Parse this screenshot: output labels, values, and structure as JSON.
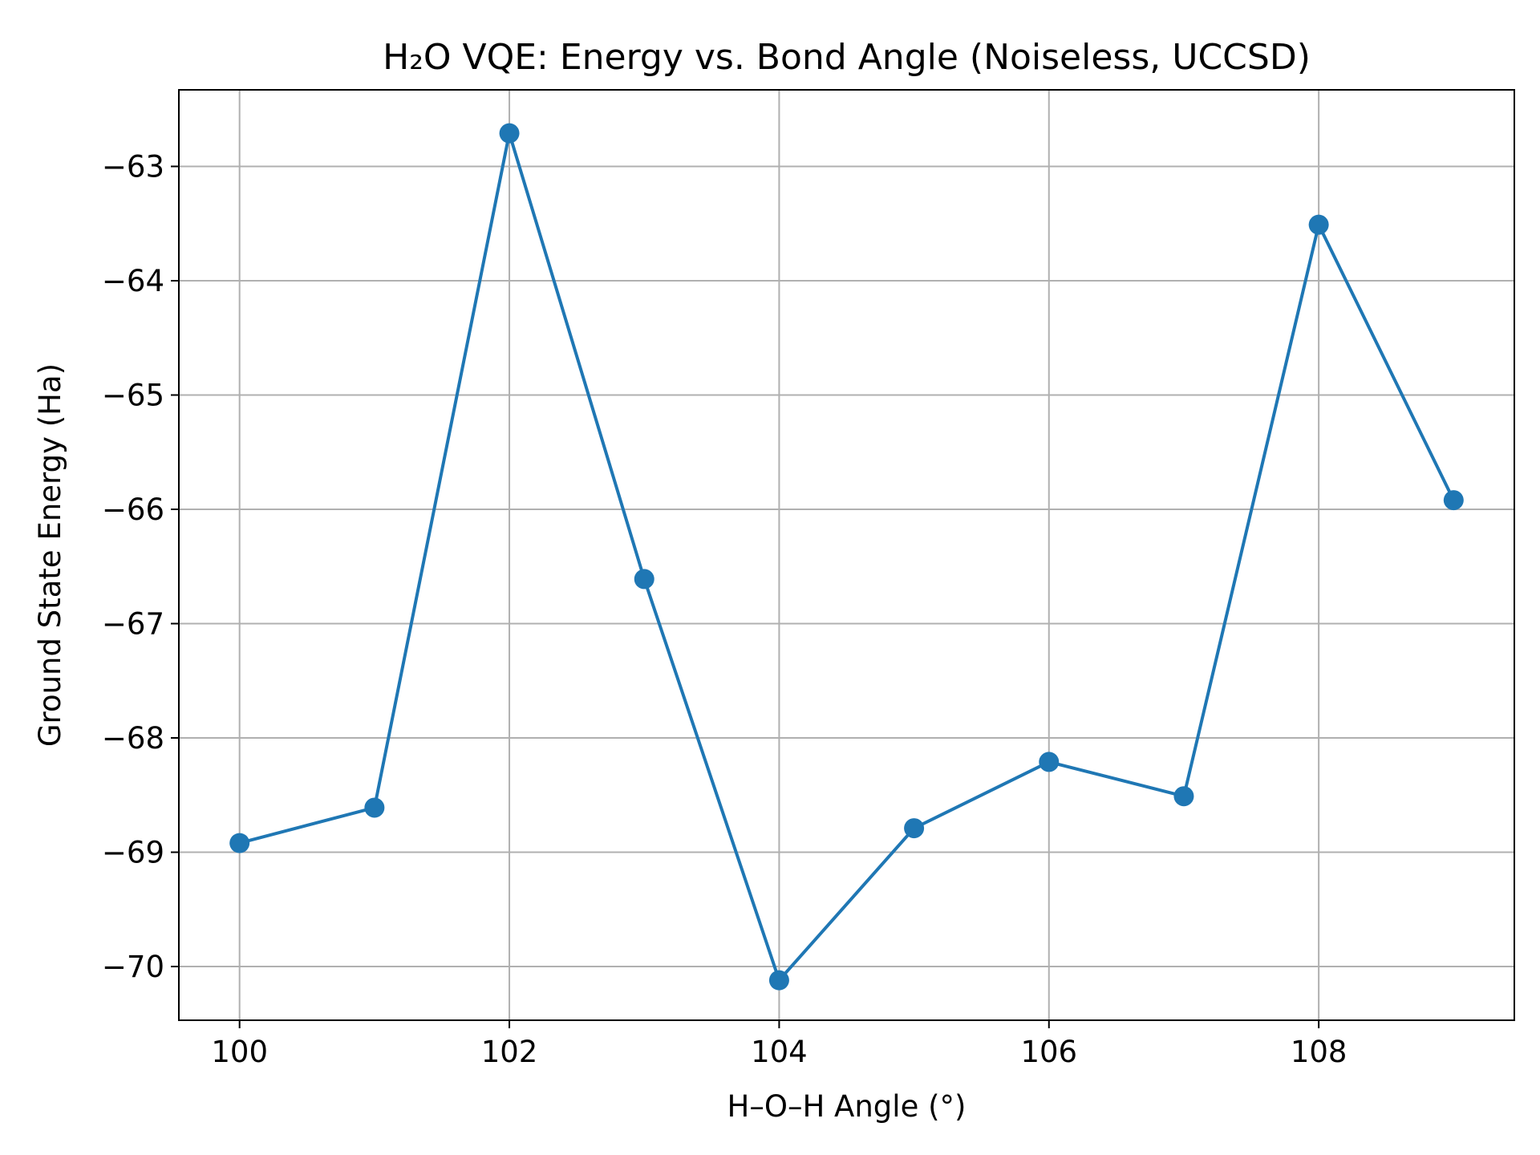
{
  "chart_data": {
    "type": "line",
    "title": "H₂O VQE: Energy vs. Bond Angle (Noiseless, UCCSD)",
    "xlabel": "H–O–H Angle (°)",
    "ylabel": "Ground State Energy (Ha)",
    "xlim": [
      99.55,
      109.45
    ],
    "ylim": [
      -70.47,
      -62.33
    ],
    "xticks": [
      100,
      102,
      104,
      106,
      108
    ],
    "xtick_labels": [
      "100",
      "102",
      "104",
      "106",
      "108"
    ],
    "yticks": [
      -70,
      -69,
      -68,
      -67,
      -66,
      -65,
      -64,
      -63
    ],
    "ytick_labels": [
      "−70",
      "−69",
      "−68",
      "−67",
      "−66",
      "−65",
      "−64",
      "−63"
    ],
    "grid": true,
    "series": [
      {
        "color": "#1f77b4",
        "marker": "circle",
        "x": [
          100,
          101,
          102,
          103,
          104,
          105,
          106,
          107,
          108,
          109
        ],
        "y": [
          -68.92,
          -68.61,
          -62.71,
          -66.61,
          -70.12,
          -68.79,
          -68.21,
          -68.51,
          -63.51,
          -65.92
        ]
      }
    ]
  }
}
